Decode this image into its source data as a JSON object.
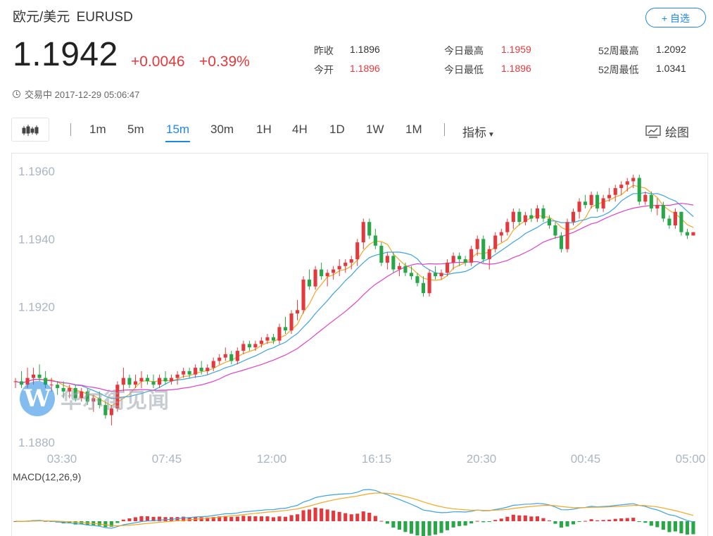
{
  "header": {
    "pair_name": "欧元/美元",
    "symbol": "EURUSD",
    "add_watchlist": "+ 自选",
    "price": "1.1942",
    "change": "+0.0046",
    "change_pct": "+0.39%",
    "status": "交易中 2017-12-29 05:06:47"
  },
  "stats": [
    {
      "label": "昨收",
      "value": "1.1896",
      "color": "#333333"
    },
    {
      "label": "今开",
      "value": "1.1896",
      "color": "#e4393c"
    },
    {
      "label": "今日最高",
      "value": "1.1959",
      "color": "#e4393c"
    },
    {
      "label": "今日最低",
      "value": "1.1896",
      "color": "#e4393c"
    },
    {
      "label": "52周最高",
      "value": "1.2092",
      "color": "#333333"
    },
    {
      "label": "52周最低",
      "value": "1.0341",
      "color": "#333333"
    }
  ],
  "toolbar": {
    "timeframes": [
      "1m",
      "5m",
      "15m",
      "30m",
      "1H",
      "4H",
      "1D",
      "1W",
      "1M"
    ],
    "active": "15m",
    "indicators": "指标",
    "draw": "绘图"
  },
  "watermark": "华尔街见闻",
  "chart_data": {
    "type": "candlestick",
    "y_ticks": [
      "1.1960",
      "1.1940",
      "1.1920",
      "1.1880"
    ],
    "ylim": [
      1.188,
      1.196
    ],
    "x_ticks": [
      "03:30",
      "07:45",
      "12:00",
      "16:15",
      "20:30",
      "00:45",
      "05:00"
    ],
    "up_color": "#e4393c",
    "down_color": "#27a745",
    "candles": [
      [
        1.1898,
        1.1899,
        1.1896,
        1.1898
      ],
      [
        1.1898,
        1.1901,
        1.1896,
        1.1897
      ],
      [
        1.1897,
        1.1902,
        1.1896,
        1.1899
      ],
      [
        1.1899,
        1.1902,
        1.1897,
        1.19
      ],
      [
        1.19,
        1.1903,
        1.1898,
        1.1899
      ],
      [
        1.1899,
        1.1901,
        1.1896,
        1.1897
      ],
      [
        1.1897,
        1.1899,
        1.1895,
        1.1897
      ],
      [
        1.1897,
        1.1898,
        1.1894,
        1.1896
      ],
      [
        1.1896,
        1.1898,
        1.1893,
        1.1895
      ],
      [
        1.1895,
        1.1897,
        1.1893,
        1.1896
      ],
      [
        1.1896,
        1.1897,
        1.1892,
        1.1893
      ],
      [
        1.1893,
        1.1896,
        1.1892,
        1.1895
      ],
      [
        1.1895,
        1.1896,
        1.1891,
        1.1892
      ],
      [
        1.1892,
        1.1894,
        1.1889,
        1.1893
      ],
      [
        1.1893,
        1.1895,
        1.189,
        1.1891
      ],
      [
        1.1891,
        1.1892,
        1.1887,
        1.1888
      ],
      [
        1.1888,
        1.1891,
        1.1885,
        1.189
      ],
      [
        1.189,
        1.1898,
        1.1889,
        1.1897
      ],
      [
        1.1897,
        1.1902,
        1.1895,
        1.1899
      ],
      [
        1.1899,
        1.19,
        1.1896,
        1.1897
      ],
      [
        1.1897,
        1.19,
        1.1896,
        1.1898
      ],
      [
        1.1898,
        1.1901,
        1.1896,
        1.1899
      ],
      [
        1.1899,
        1.19,
        1.1897,
        1.1898
      ],
      [
        1.1898,
        1.19,
        1.1896,
        1.1897
      ],
      [
        1.1897,
        1.19,
        1.1896,
        1.1899
      ],
      [
        1.1899,
        1.1901,
        1.1897,
        1.1898
      ],
      [
        1.1898,
        1.19,
        1.1897,
        1.1899
      ],
      [
        1.1899,
        1.1901,
        1.1897,
        1.19
      ],
      [
        1.19,
        1.1902,
        1.1899,
        1.1901
      ],
      [
        1.1901,
        1.1902,
        1.1899,
        1.19
      ],
      [
        1.19,
        1.1903,
        1.1899,
        1.1902
      ],
      [
        1.1902,
        1.1904,
        1.19,
        1.1901
      ],
      [
        1.1901,
        1.1903,
        1.19,
        1.1902
      ],
      [
        1.1902,
        1.1905,
        1.1901,
        1.1904
      ],
      [
        1.1904,
        1.1906,
        1.1903,
        1.1905
      ],
      [
        1.1905,
        1.1908,
        1.1904,
        1.1906
      ],
      [
        1.1906,
        1.1907,
        1.1903,
        1.1904
      ],
      [
        1.1904,
        1.1908,
        1.1903,
        1.1907
      ],
      [
        1.1907,
        1.191,
        1.1906,
        1.1909
      ],
      [
        1.1909,
        1.191,
        1.1907,
        1.1908
      ],
      [
        1.1908,
        1.191,
        1.1907,
        1.1909
      ],
      [
        1.1909,
        1.1911,
        1.1908,
        1.191
      ],
      [
        1.191,
        1.1912,
        1.1909,
        1.1911
      ],
      [
        1.1911,
        1.1912,
        1.1909,
        1.191
      ],
      [
        1.191,
        1.1915,
        1.1909,
        1.1914
      ],
      [
        1.1914,
        1.1917,
        1.1912,
        1.1913
      ],
      [
        1.1913,
        1.1919,
        1.1912,
        1.1918
      ],
      [
        1.1918,
        1.1922,
        1.1916,
        1.1919
      ],
      [
        1.1919,
        1.1929,
        1.1918,
        1.1928
      ],
      [
        1.1928,
        1.1931,
        1.1925,
        1.1926
      ],
      [
        1.1926,
        1.1932,
        1.1925,
        1.1931
      ],
      [
        1.1931,
        1.1933,
        1.1928,
        1.1929
      ],
      [
        1.1929,
        1.1931,
        1.1926,
        1.193
      ],
      [
        1.193,
        1.1932,
        1.1928,
        1.1931
      ],
      [
        1.1931,
        1.1934,
        1.1929,
        1.1932
      ],
      [
        1.1932,
        1.1934,
        1.193,
        1.1933
      ],
      [
        1.1933,
        1.1935,
        1.1931,
        1.1934
      ],
      [
        1.1934,
        1.194,
        1.1932,
        1.1939
      ],
      [
        1.1939,
        1.1946,
        1.1937,
        1.1945
      ],
      [
        1.1945,
        1.1946,
        1.194,
        1.1941
      ],
      [
        1.1941,
        1.1943,
        1.1937,
        1.1938
      ],
      [
        1.1938,
        1.1939,
        1.1932,
        1.1933
      ],
      [
        1.1933,
        1.1936,
        1.1931,
        1.1935
      ],
      [
        1.1935,
        1.1936,
        1.193,
        1.1931
      ],
      [
        1.1931,
        1.1933,
        1.1929,
        1.1932
      ],
      [
        1.1932,
        1.1933,
        1.1929,
        1.193
      ],
      [
        1.193,
        1.1932,
        1.1928,
        1.1929
      ],
      [
        1.1929,
        1.193,
        1.1926,
        1.1927
      ],
      [
        1.1927,
        1.1929,
        1.1923,
        1.1924
      ],
      [
        1.1924,
        1.1931,
        1.1923,
        1.193
      ],
      [
        1.193,
        1.1932,
        1.1928,
        1.1929
      ],
      [
        1.1929,
        1.1931,
        1.1928,
        1.193
      ],
      [
        1.193,
        1.1934,
        1.1929,
        1.1933
      ],
      [
        1.1933,
        1.1936,
        1.1931,
        1.1935
      ],
      [
        1.1935,
        1.1936,
        1.1932,
        1.1934
      ],
      [
        1.1934,
        1.1935,
        1.1932,
        1.1933
      ],
      [
        1.1933,
        1.1938,
        1.1932,
        1.1937
      ],
      [
        1.1937,
        1.1941,
        1.1935,
        1.194
      ],
      [
        1.194,
        1.1941,
        1.1933,
        1.1934
      ],
      [
        1.1934,
        1.1938,
        1.1931,
        1.1937
      ],
      [
        1.1937,
        1.1942,
        1.1936,
        1.1941
      ],
      [
        1.1941,
        1.1943,
        1.1939,
        1.1942
      ],
      [
        1.1942,
        1.1946,
        1.1941,
        1.1945
      ],
      [
        1.1945,
        1.1949,
        1.1943,
        1.1948
      ],
      [
        1.1948,
        1.1949,
        1.1944,
        1.1945
      ],
      [
        1.1945,
        1.1948,
        1.1944,
        1.1947
      ],
      [
        1.1947,
        1.1949,
        1.1945,
        1.1946
      ],
      [
        1.1946,
        1.195,
        1.1945,
        1.1949
      ],
      [
        1.1949,
        1.195,
        1.1945,
        1.1946
      ],
      [
        1.1946,
        1.1947,
        1.1943,
        1.1944
      ],
      [
        1.1944,
        1.1945,
        1.194,
        1.1941
      ],
      [
        1.1941,
        1.1942,
        1.1936,
        1.1937
      ],
      [
        1.1937,
        1.1946,
        1.1936,
        1.1945
      ],
      [
        1.1945,
        1.1949,
        1.1944,
        1.1948
      ],
      [
        1.1948,
        1.1952,
        1.1946,
        1.1951
      ],
      [
        1.1951,
        1.1953,
        1.1949,
        1.195
      ],
      [
        1.195,
        1.1954,
        1.1949,
        1.1953
      ],
      [
        1.1953,
        1.1954,
        1.1948,
        1.1949
      ],
      [
        1.1949,
        1.1953,
        1.1948,
        1.1952
      ],
      [
        1.1952,
        1.1955,
        1.1951,
        1.1953
      ],
      [
        1.1953,
        1.1956,
        1.1951,
        1.1955
      ],
      [
        1.1955,
        1.1957,
        1.1953,
        1.1956
      ],
      [
        1.1956,
        1.1958,
        1.1954,
        1.1957
      ],
      [
        1.1957,
        1.1959,
        1.1955,
        1.1958
      ],
      [
        1.1958,
        1.1959,
        1.195,
        1.1951
      ],
      [
        1.1951,
        1.1954,
        1.195,
        1.1953
      ],
      [
        1.1953,
        1.1954,
        1.1948,
        1.1949
      ],
      [
        1.1949,
        1.1952,
        1.1947,
        1.195
      ],
      [
        1.195,
        1.1951,
        1.1945,
        1.1946
      ],
      [
        1.1946,
        1.1947,
        1.1943,
        1.1944
      ],
      [
        1.1944,
        1.1949,
        1.1943,
        1.1948
      ],
      [
        1.1948,
        1.1948,
        1.1941,
        1.1942
      ],
      [
        1.1942,
        1.1943,
        1.194,
        1.1941
      ],
      [
        1.1941,
        1.1942,
        1.1941,
        1.1942
      ]
    ],
    "macd_label": "MACD(12,26,9)"
  }
}
